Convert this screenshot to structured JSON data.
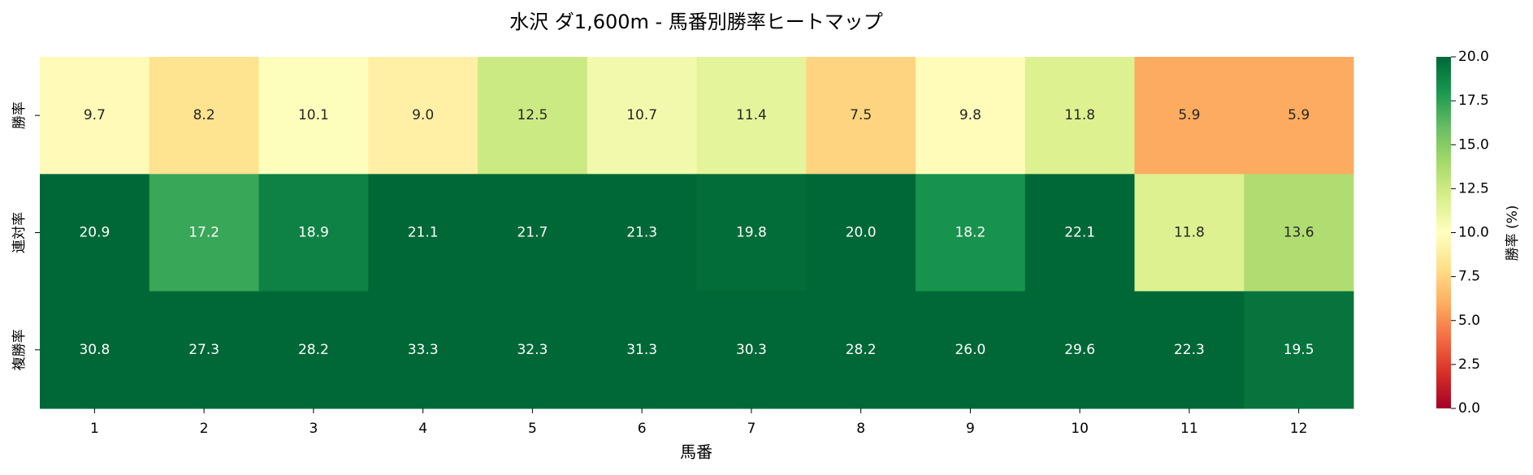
{
  "chart_data": {
    "type": "heatmap",
    "title": "水沢 ダ1,600m - 馬番別勝率ヒートマップ",
    "x_label": "馬番",
    "categories": [
      "1",
      "2",
      "3",
      "4",
      "5",
      "6",
      "7",
      "8",
      "9",
      "10",
      "11",
      "12"
    ],
    "series": [
      {
        "name": "勝率",
        "values": [
          9.7,
          8.2,
          10.1,
          9.0,
          12.5,
          10.7,
          11.4,
          7.5,
          9.8,
          11.8,
          5.9,
          5.9
        ],
        "value_labels": [
          "9.7",
          "8.2",
          "10.1",
          "9.0",
          "12.5",
          "10.7",
          "11.4",
          "7.5",
          "9.8",
          "11.8",
          "5.9",
          "5.9"
        ]
      },
      {
        "name": "連対率",
        "values": [
          20.9,
          17.2,
          18.9,
          21.1,
          21.7,
          21.3,
          19.8,
          20.0,
          18.2,
          22.1,
          11.8,
          13.6
        ],
        "value_labels": [
          "20.9",
          "17.2",
          "18.9",
          "21.1",
          "21.7",
          "21.3",
          "19.8",
          "20.0",
          "18.2",
          "22.1",
          "11.8",
          "13.6"
        ]
      },
      {
        "name": "複勝率",
        "values": [
          30.8,
          27.3,
          28.2,
          33.3,
          32.3,
          31.3,
          30.3,
          28.2,
          26.0,
          29.6,
          22.3,
          19.5
        ],
        "value_labels": [
          "30.8",
          "27.3",
          "28.2",
          "33.3",
          "32.3",
          "31.3",
          "30.3",
          "28.2",
          "26.0",
          "29.6",
          "22.3",
          "19.5"
        ]
      }
    ],
    "colormap": "RdYlGn",
    "colorbar_label": "勝率 (%)",
    "clim": [
      0,
      20
    ],
    "cticks": [
      {
        "value": 0,
        "label": "0.0"
      },
      {
        "value": 2.5,
        "label": "2.5"
      },
      {
        "value": 5,
        "label": "5.0"
      },
      {
        "value": 7.5,
        "label": "7.5"
      },
      {
        "value": 10,
        "label": "10.0"
      },
      {
        "value": 12.5,
        "label": "12.5"
      },
      {
        "value": 15,
        "label": "15.0"
      },
      {
        "value": 17.5,
        "label": "17.5"
      },
      {
        "value": 20,
        "label": "20.0"
      }
    ]
  }
}
